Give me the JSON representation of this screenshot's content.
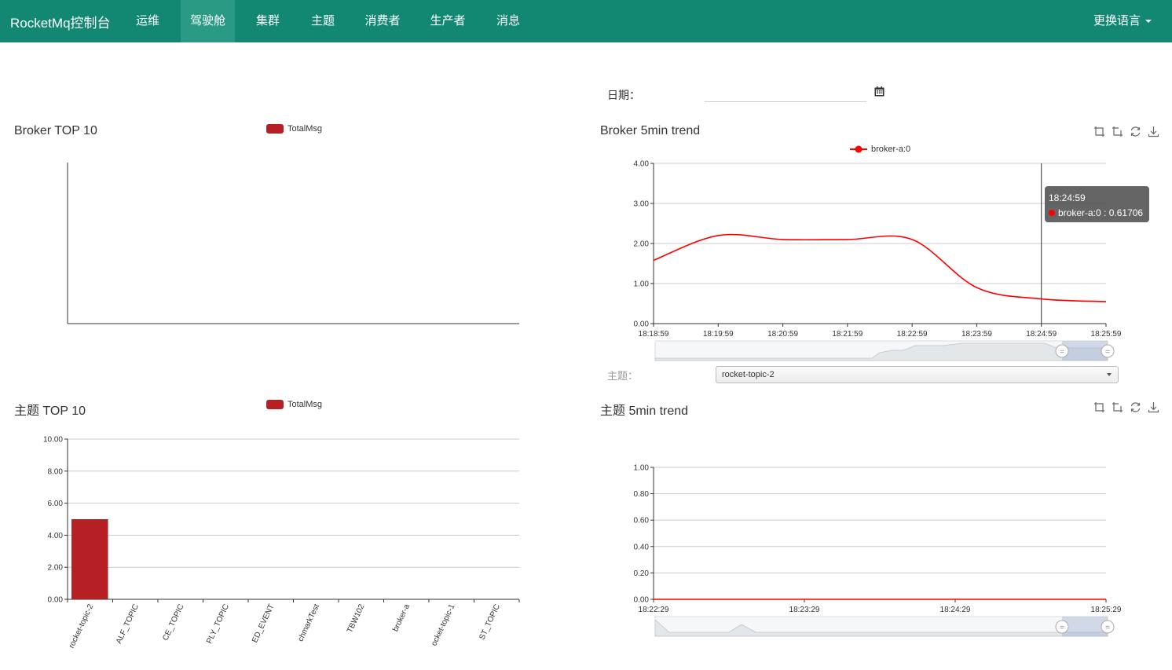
{
  "navbar": {
    "brand": "RocketMq控制台",
    "items": [
      {
        "label": "运维"
      },
      {
        "label": "驾驶舱"
      },
      {
        "label": "集群"
      },
      {
        "label": "主题"
      },
      {
        "label": "消费者"
      },
      {
        "label": "生产者"
      },
      {
        "label": "消息"
      }
    ],
    "active": "驾驶舱",
    "language": "更换语言"
  },
  "date": {
    "label": "日期：",
    "value": ""
  },
  "colors": {
    "primary": "#128872",
    "bar": "#b61f24",
    "line": "#ff0000"
  },
  "toolbox_icons": [
    "zoom-area-icon",
    "zoom-reset-icon",
    "restore-icon",
    "save-image-icon"
  ],
  "broker_top": {
    "title": "Broker TOP 10",
    "legend": "TotalMsg"
  },
  "broker_trend": {
    "title": "Broker 5min trend",
    "legend": "broker-a:0",
    "tooltip": {
      "time": "18:24:59",
      "series": "broker-a:0",
      "value": "0.61706"
    },
    "topic_label": "主题：",
    "topic_value": "rocket-topic-2"
  },
  "topic_top": {
    "title": "主题 TOP 10",
    "legend": "TotalMsg"
  },
  "topic_trend": {
    "title": "主题 5min trend"
  },
  "chart_data": [
    {
      "type": "bar",
      "title": "Broker TOP 10",
      "legend": [
        "TotalMsg"
      ],
      "categories": [],
      "values": []
    },
    {
      "type": "line",
      "title": "Broker 5min trend",
      "legend": [
        "broker-a:0"
      ],
      "x": [
        "18:18:59",
        "18:19:59",
        "18:20:59",
        "18:21:59",
        "18:22:59",
        "18:23:59",
        "18:24:59",
        "18:25:59"
      ],
      "series": [
        {
          "name": "broker-a:0",
          "values": [
            1.58,
            2.2,
            2.1,
            2.1,
            2.1,
            0.9,
            0.61706,
            0.55
          ]
        }
      ],
      "yticks": [
        "0.00",
        "1.00",
        "2.00",
        "3.00",
        "4.00"
      ],
      "ylim": [
        0,
        4
      ],
      "grid": true,
      "legend_position": "top"
    },
    {
      "type": "bar",
      "title": "主题 TOP 10",
      "legend": [
        "TotalMsg"
      ],
      "categories": [
        "rocket-topic-2",
        "HALF_TOPIC",
        "TRACE_TOPIC",
        "REPLY_TOPIC",
        "SCHEDULED_EVENT",
        "BenchmarkTest",
        "TBW102",
        "broker-a",
        "rocket-topic-1",
        "TEST_TOPIC"
      ],
      "tick_labels": [
        "rocket-topic-2",
        "ALF_TOPIC",
        "CE_TOPIC",
        "PLY_TOPIC",
        "ED_EVENT",
        "chmarkTest",
        "TBW102",
        "broker-a",
        "ocket-topic-1",
        "ST_TOPIC"
      ],
      "values": [
        5,
        0,
        0,
        0,
        0,
        0,
        0,
        0,
        0,
        0
      ],
      "yticks": [
        "0.00",
        "2.00",
        "4.00",
        "6.00",
        "8.00",
        "10.00"
      ],
      "ylim": [
        0,
        10
      ],
      "grid": true,
      "legend_position": "top"
    },
    {
      "type": "line",
      "title": "主题 5min trend",
      "x": [
        "18:22:29",
        "18:23:29",
        "18:24:29",
        "18:25:29"
      ],
      "series": [
        {
          "name": "",
          "values": [
            0,
            0,
            0,
            0
          ]
        }
      ],
      "yticks": [
        "0.00",
        "0.20",
        "0.40",
        "0.60",
        "0.80",
        "1.00"
      ],
      "ylim": [
        0,
        1
      ],
      "grid": true
    }
  ]
}
